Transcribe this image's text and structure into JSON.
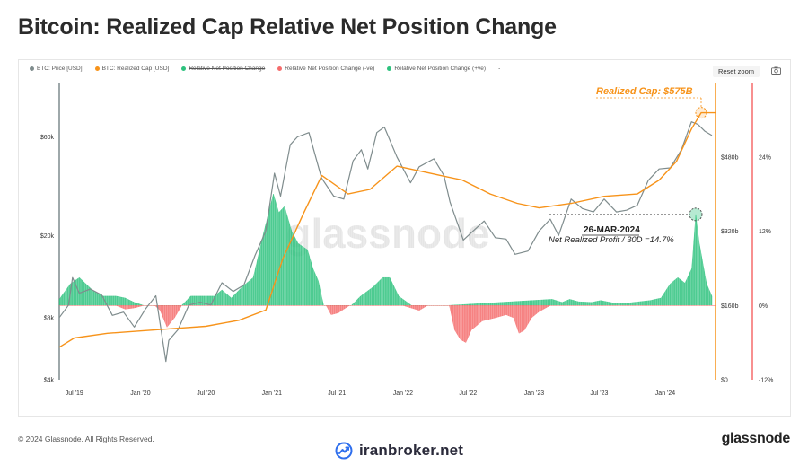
{
  "title": "Bitcoin: Realized Cap Relative Net Position Change",
  "legend": [
    {
      "label": "BTC: Price [USD]",
      "color": "#7f8c8d",
      "struck": false
    },
    {
      "label": "BTC: Realized Cap [USD]",
      "color": "#f7931a",
      "struck": false
    },
    {
      "label": "Relative Net Position Change",
      "color": "#2ec27e",
      "struck": true
    },
    {
      "label": "Relative Net Position Change (-ve)",
      "color": "#f56c6c",
      "struck": false
    },
    {
      "label": "Relative Net Position Change (+ve)",
      "color": "#2ec27e",
      "struck": false
    }
  ],
  "legend_extra": "-",
  "reset_zoom": "Reset zoom",
  "camera_icon": "camera-icon",
  "watermark": "glassnode",
  "footer_left": "© 2024 Glassnode. All Rights Reserved.",
  "footer_right": "glassnode",
  "broker": "iranbroker.net",
  "annotations": {
    "realized_cap": "Realized Cap: $575B",
    "date": "26-MAR-2024",
    "profit": "Net Realized Profit / 30D =14.7%"
  },
  "colors": {
    "price": "#7f8c8d",
    "realized_cap": "#f7931a",
    "positive": "#2ec27e",
    "negative": "#f56c6c",
    "right_axis": "#f56c6c",
    "left_axis": "#7f8c8d"
  },
  "chart_data": {
    "type": "area",
    "title": "Bitcoin: Realized Cap Relative Net Position Change",
    "x_ticks": [
      "Jul '19",
      "Jan '20",
      "Jul '20",
      "Jan '21",
      "Jul '21",
      "Jan '22",
      "Jul '22",
      "Jan '23",
      "Jul '23",
      "Jan '24"
    ],
    "x_tick_dates": [
      "2019-07-01",
      "2020-01-01",
      "2020-07-01",
      "2021-01-01",
      "2021-07-01",
      "2022-01-01",
      "2022-07-01",
      "2023-01-01",
      "2023-07-01",
      "2024-01-01"
    ],
    "xlim": [
      "2019-05-20",
      "2024-05-20"
    ],
    "price_axis": {
      "scale": "log",
      "ticks": [
        "$4k",
        "$8k",
        "$20k",
        "$60k"
      ],
      "tick_values": [
        4000,
        8000,
        20000,
        60000
      ],
      "ylim": [
        4000,
        110000
      ]
    },
    "realized_cap_axis": {
      "ticks": [
        "$0",
        "$160b",
        "$320b",
        "$480b"
      ],
      "tick_values": [
        0,
        160,
        320,
        480
      ],
      "ylim": [
        0,
        640
      ]
    },
    "net_change_axis": {
      "ticks": [
        "-12%",
        "0%",
        "12%",
        "24%"
      ],
      "tick_values": [
        -12,
        0,
        12,
        24
      ],
      "ylim": [
        -12,
        36
      ]
    },
    "series": [
      {
        "name": "BTC: Price [USD]",
        "x": [
          "2019-05-20",
          "2019-06-15",
          "2019-06-26",
          "2019-07-15",
          "2019-08-15",
          "2019-09-15",
          "2019-10-15",
          "2019-11-15",
          "2019-12-15",
          "2020-01-15",
          "2020-02-13",
          "2020-03-12",
          "2020-03-20",
          "2020-04-15",
          "2020-05-15",
          "2020-06-15",
          "2020-07-15",
          "2020-08-15",
          "2020-09-15",
          "2020-10-15",
          "2020-11-15",
          "2020-12-15",
          "2021-01-08",
          "2021-01-25",
          "2021-02-21",
          "2021-03-13",
          "2021-04-14",
          "2021-05-19",
          "2021-06-22",
          "2021-07-20",
          "2021-08-15",
          "2021-09-07",
          "2021-09-25",
          "2021-10-20",
          "2021-11-10",
          "2021-12-15",
          "2022-01-22",
          "2022-02-15",
          "2022-03-28",
          "2022-04-25",
          "2022-05-12",
          "2022-06-18",
          "2022-07-15",
          "2022-08-15",
          "2022-09-15",
          "2022-10-15",
          "2022-11-09",
          "2022-12-15",
          "2023-01-15",
          "2023-02-15",
          "2023-03-10",
          "2023-04-14",
          "2023-05-15",
          "2023-06-15",
          "2023-07-15",
          "2023-08-18",
          "2023-09-15",
          "2023-10-15",
          "2023-11-15",
          "2023-12-15",
          "2024-01-15",
          "2024-02-15",
          "2024-03-14",
          "2024-04-01",
          "2024-04-20",
          "2024-05-10"
        ],
        "values": [
          8000,
          9200,
          12500,
          10500,
          11000,
          10300,
          8200,
          8500,
          7200,
          8800,
          10200,
          4900,
          6200,
          7000,
          9200,
          9500,
          9200,
          11800,
          10700,
          11500,
          16000,
          21000,
          40000,
          31000,
          55000,
          60000,
          63000,
          38000,
          31000,
          30000,
          46000,
          52000,
          42000,
          63000,
          67000,
          48000,
          36000,
          43000,
          47000,
          39000,
          29000,
          19000,
          21000,
          23500,
          19500,
          19200,
          16200,
          16800,
          21000,
          24000,
          20000,
          30000,
          27000,
          26000,
          30000,
          26000,
          26500,
          28000,
          37000,
          42000,
          42500,
          52000,
          71000,
          69000,
          64000,
          61000
        ]
      },
      {
        "name": "BTC: Realized Cap [USD]",
        "x": [
          "2019-05-20",
          "2019-07-01",
          "2019-10-01",
          "2020-01-01",
          "2020-04-01",
          "2020-07-01",
          "2020-10-01",
          "2020-12-15",
          "2021-01-31",
          "2021-03-31",
          "2021-05-20",
          "2021-08-01",
          "2021-10-01",
          "2021-12-15",
          "2022-02-15",
          "2022-04-15",
          "2022-06-15",
          "2022-09-01",
          "2022-11-15",
          "2023-01-15",
          "2023-04-15",
          "2023-07-15",
          "2023-10-15",
          "2023-12-15",
          "2024-02-01",
          "2024-03-14",
          "2024-04-10",
          "2024-05-20"
        ],
        "values": [
          70,
          90,
          100,
          105,
          110,
          115,
          128,
          150,
          260,
          360,
          440,
          400,
          410,
          460,
          450,
          440,
          430,
          400,
          380,
          370,
          380,
          395,
          400,
          430,
          470,
          540,
          575,
          575
        ]
      },
      {
        "name": "Relative Net Position Change (+ve)",
        "x": [
          "2019-05-20",
          "2019-06-20",
          "2019-07-15",
          "2019-08-20",
          "2019-09-20",
          "2019-10-25",
          "2019-11-20",
          "2019-12-15",
          "2020-01-10",
          "2020-02-10",
          "2020-02-25",
          "2020-03-05",
          "2020-04-25",
          "2020-05-20",
          "2020-06-25",
          "2020-07-25",
          "2020-08-15",
          "2020-09-10",
          "2020-10-10",
          "2020-11-10",
          "2020-12-10",
          "2021-01-05",
          "2021-01-20",
          "2021-02-05",
          "2021-02-25",
          "2021-03-15",
          "2021-04-10",
          "2021-04-25",
          "2021-05-10",
          "2021-05-25",
          "2021-07-05",
          "2021-08-10",
          "2021-09-05",
          "2021-10-10",
          "2021-11-05",
          "2021-11-25",
          "2021-12-20",
          "2022-01-25",
          "2022-02-10",
          "2022-03-20",
          "2022-04-15",
          "2022-05-05",
          "2023-02-20",
          "2023-03-20",
          "2023-04-10",
          "2023-05-05",
          "2023-06-10",
          "2023-07-05",
          "2023-08-10",
          "2023-09-20",
          "2023-10-20",
          "2023-11-20",
          "2023-12-20",
          "2024-01-15",
          "2024-02-05",
          "2024-02-25",
          "2024-03-15",
          "2024-03-26",
          "2024-04-05",
          "2024-04-25",
          "2024-05-10"
        ],
        "values": [
          1,
          3.5,
          4.5,
          2.5,
          1.5,
          1.5,
          1.2,
          0.5,
          0,
          0,
          0,
          0,
          0,
          1.5,
          1.5,
          1.5,
          2.5,
          1.2,
          3,
          4.5,
          12,
          18,
          15,
          16,
          12,
          10,
          9,
          6,
          4,
          0,
          0,
          0,
          1.5,
          3,
          4.5,
          4.5,
          1.5,
          0,
          0,
          0,
          0,
          0,
          1,
          0.5,
          1,
          0.6,
          0.5,
          0.8,
          0.4,
          0.4,
          0.6,
          0.8,
          1.2,
          3.5,
          4.5,
          3.6,
          6,
          14.7,
          10,
          3.5,
          1.5
        ]
      },
      {
        "name": "Relative Net Position Change (-ve)",
        "x": [
          "2019-05-20",
          "2019-10-25",
          "2019-11-20",
          "2019-12-15",
          "2020-01-10",
          "2020-02-10",
          "2020-02-25",
          "2020-03-15",
          "2020-04-05",
          "2020-04-25",
          "2021-06-01",
          "2021-06-15",
          "2021-07-05",
          "2021-07-20",
          "2021-08-05",
          "2022-01-01",
          "2022-02-15",
          "2022-03-10",
          "2022-05-10",
          "2022-05-25",
          "2022-06-10",
          "2022-06-25",
          "2022-07-10",
          "2022-08-10",
          "2022-09-15",
          "2022-10-15",
          "2022-11-05",
          "2022-11-20",
          "2022-12-05",
          "2022-12-25",
          "2023-01-15",
          "2023-02-15",
          "2024-05-20"
        ],
        "values": [
          0,
          0,
          -0.6,
          -0.4,
          0,
          0,
          -0.8,
          -3.5,
          -2,
          0,
          0,
          -1.5,
          -1.2,
          -0.6,
          0,
          0,
          -0.8,
          0,
          0,
          -4,
          -5.5,
          -6,
          -4,
          -2.5,
          -2,
          -1.5,
          -2,
          -4.5,
          -4,
          -2,
          -1,
          0,
          0
        ]
      }
    ]
  }
}
